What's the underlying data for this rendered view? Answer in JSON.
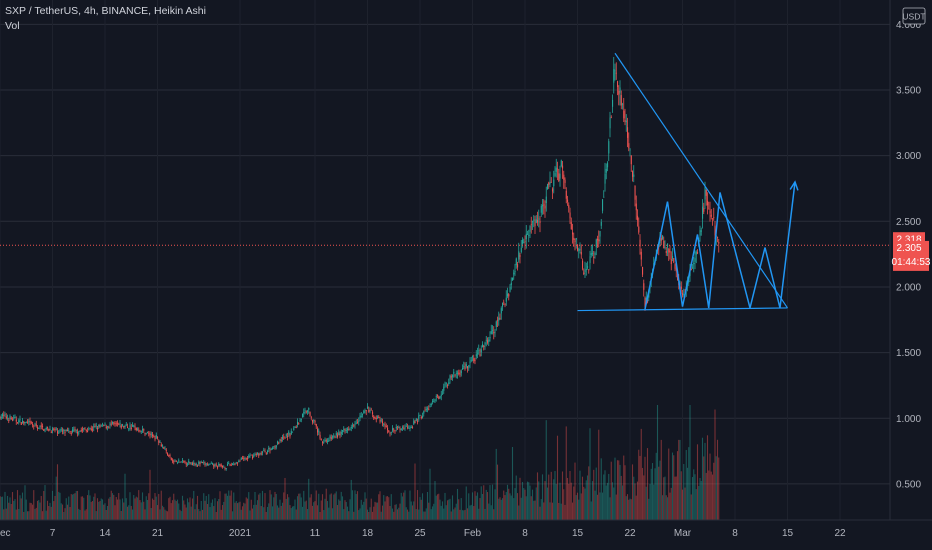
{
  "header": {
    "symbol_line": "SXP / TetherUS, 4h, BINANCE, Heikin Ashi",
    "indicator_label": "Vol"
  },
  "currency_label": "USDT",
  "colors": {
    "background": "#131722",
    "grid": "#2a2e39",
    "up": "#26a69a",
    "down": "#ef5350",
    "drawing": "#2196f3",
    "price_tag": "#ef5350",
    "axis_text": "#b2b5be"
  },
  "price_tags": {
    "last_price": "2.318",
    "current_price": "2.305",
    "countdown": "01:44:53"
  },
  "chart_data": {
    "type": "candlestick",
    "title": "SXP / TetherUS, 4h, BINANCE, Heikin Ashi",
    "y_ticks": [
      "0.500",
      "1.000",
      "1.500",
      "2.000",
      "2.500",
      "3.000",
      "3.500",
      "4.000"
    ],
    "y_tick_values": [
      0.5,
      1.0,
      1.5,
      2.0,
      2.5,
      3.0,
      3.5,
      4.0
    ],
    "ylim": [
      0.2,
      4.05
    ],
    "x_ticks": [
      "ec",
      "7",
      "14",
      "21",
      "2021",
      "11",
      "18",
      "25",
      "Feb",
      "8",
      "15",
      "22",
      "Mar",
      "8",
      "15",
      "22"
    ],
    "x_tick_day_index": [
      0,
      7,
      14,
      21,
      32,
      42,
      49,
      56,
      63,
      70,
      77,
      84,
      91,
      98,
      105,
      112
    ],
    "x_range_days": [
      0,
      119
    ],
    "price_path": [
      {
        "day": 0,
        "price": 1.02
      },
      {
        "day": 3,
        "price": 0.97
      },
      {
        "day": 6,
        "price": 0.92
      },
      {
        "day": 9,
        "price": 0.89
      },
      {
        "day": 12,
        "price": 0.92
      },
      {
        "day": 15,
        "price": 0.95
      },
      {
        "day": 18,
        "price": 0.93
      },
      {
        "day": 21,
        "price": 0.85
      },
      {
        "day": 23,
        "price": 0.67
      },
      {
        "day": 26,
        "price": 0.66
      },
      {
        "day": 30,
        "price": 0.63
      },
      {
        "day": 33,
        "price": 0.7
      },
      {
        "day": 36,
        "price": 0.76
      },
      {
        "day": 39,
        "price": 0.9
      },
      {
        "day": 41,
        "price": 1.08
      },
      {
        "day": 43,
        "price": 0.82
      },
      {
        "day": 46,
        "price": 0.9
      },
      {
        "day": 49,
        "price": 1.07
      },
      {
        "day": 52,
        "price": 0.9
      },
      {
        "day": 55,
        "price": 0.95
      },
      {
        "day": 58,
        "price": 1.13
      },
      {
        "day": 60,
        "price": 1.3
      },
      {
        "day": 62,
        "price": 1.39
      },
      {
        "day": 64,
        "price": 1.5
      },
      {
        "day": 66,
        "price": 1.68
      },
      {
        "day": 68,
        "price": 2.0
      },
      {
        "day": 70,
        "price": 2.4
      },
      {
        "day": 72,
        "price": 2.55
      },
      {
        "day": 73,
        "price": 2.72
      },
      {
        "day": 75,
        "price": 2.93
      },
      {
        "day": 76,
        "price": 2.52
      },
      {
        "day": 77,
        "price": 2.3
      },
      {
        "day": 78,
        "price": 2.1
      },
      {
        "day": 80,
        "price": 2.4
      },
      {
        "day": 81,
        "price": 3.02
      },
      {
        "day": 82,
        "price": 3.7
      },
      {
        "day": 83,
        "price": 3.38
      },
      {
        "day": 84,
        "price": 3.05
      },
      {
        "day": 85,
        "price": 2.56
      },
      {
        "day": 86,
        "price": 1.83
      },
      {
        "day": 88,
        "price": 2.4
      },
      {
        "day": 89,
        "price": 2.3
      },
      {
        "day": 91,
        "price": 1.95
      },
      {
        "day": 93,
        "price": 2.25
      },
      {
        "day": 94,
        "price": 2.7
      },
      {
        "day": 96,
        "price": 2.3
      }
    ],
    "annotations": {
      "descending_trendline": [
        {
          "day": 82,
          "price": 3.78
        },
        {
          "day": 105,
          "price": 1.84
        }
      ],
      "support_line": [
        {
          "day": 77,
          "price": 1.82
        },
        {
          "day": 105,
          "price": 1.84
        }
      ],
      "zigzag_path": [
        {
          "day": 86,
          "price": 1.83
        },
        {
          "day": 89,
          "price": 2.65
        },
        {
          "day": 91,
          "price": 1.85
        },
        {
          "day": 93,
          "price": 2.4
        },
        {
          "day": 94.5,
          "price": 1.84
        },
        {
          "day": 96,
          "price": 2.72
        },
        {
          "day": 98,
          "price": 2.28
        },
        {
          "day": 100,
          "price": 1.84
        },
        {
          "day": 102,
          "price": 2.3
        },
        {
          "day": 104,
          "price": 1.84
        },
        {
          "day": 106,
          "price": 2.8
        }
      ]
    }
  }
}
